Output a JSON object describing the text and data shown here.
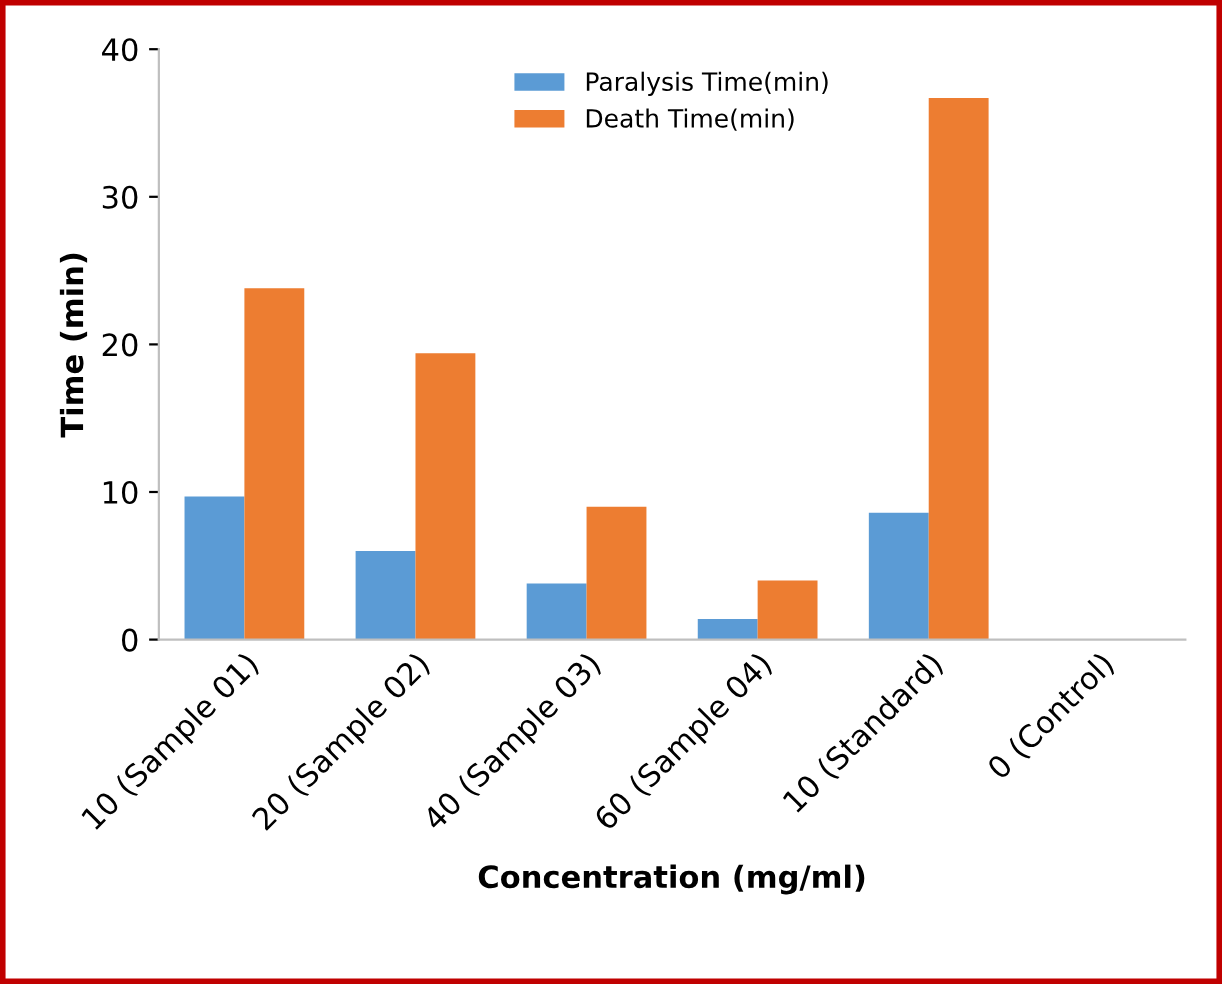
{
  "chart_data": {
    "type": "bar",
    "xlabel": "Concentration (mg/ml)",
    "ylabel": "Time (min)",
    "categories": [
      "10 (Sample 01)",
      "20 (Sample 02)",
      "40 (Sample 03)",
      "60 (Sample 04)",
      "10 (Standard)",
      "0 (Control)"
    ],
    "series": [
      {
        "name": "Paralysis Time(min)",
        "color": "#5b9bd5",
        "values": [
          9.7,
          6.0,
          3.8,
          1.4,
          8.6,
          0
        ]
      },
      {
        "name": "Death Time(min)",
        "color": "#ed7d31",
        "values": [
          23.8,
          19.4,
          9.0,
          4.0,
          36.7,
          0
        ]
      }
    ],
    "ylim": [
      0,
      40
    ],
    "yticks": [
      0,
      10,
      20,
      30,
      40
    ],
    "grid": false,
    "legend": "top"
  }
}
